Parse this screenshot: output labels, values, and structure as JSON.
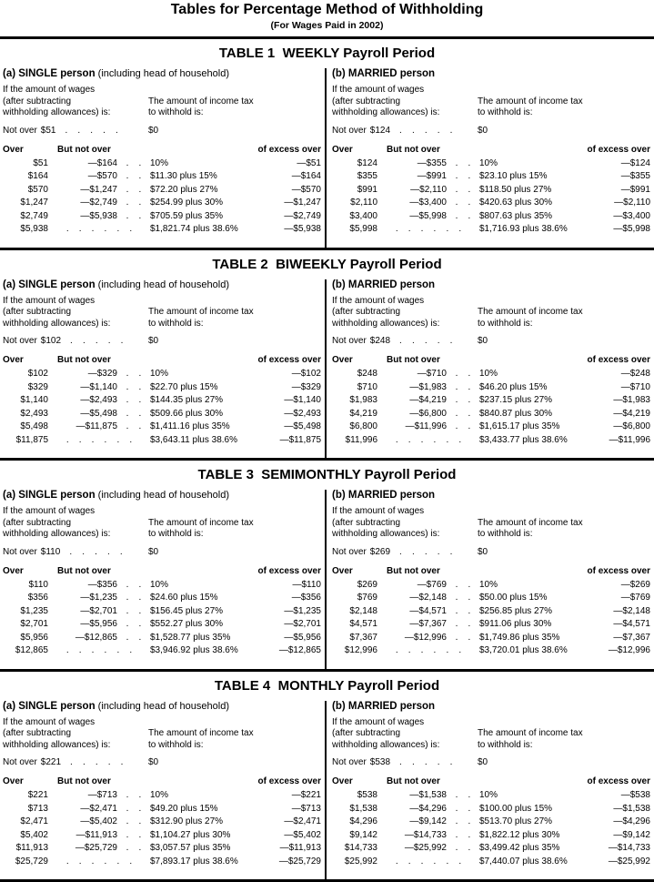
{
  "page": {
    "title": "Tables for Percentage Method of Withholding",
    "subtitle": "(For Wages Paid in 2002)"
  },
  "labels": {
    "wages_lines": [
      "If the amount of wages",
      "(after subtracting",
      "withholding allowances) is:"
    ],
    "tax_lines": [
      "The amount of income tax",
      "to withhold is:"
    ],
    "not_over_prefix": "Not over",
    "zero_amount": "$0",
    "col_over": "Over",
    "col_but_not_over": "But not over",
    "col_of_excess_over": "of excess over",
    "leader_not_over": ".    .    .    .    .",
    "leader_short": ".    .",
    "leader_long": ".    .    .    .    .    ."
  },
  "tables": [
    {
      "title": "TABLE 1  WEEKLY Payroll Period",
      "panels": [
        {
          "id": "single",
          "heading_bold": "(a) SINGLE person",
          "heading_rest": " (including head of household)",
          "not_over": "$51",
          "rows": [
            {
              "over": "$51",
              "but_not_over": "—$164",
              "tax": "10%",
              "of_excess_over": "—$51"
            },
            {
              "over": "$164",
              "but_not_over": "—$570",
              "tax": "$11.30 plus 15%",
              "of_excess_over": "—$164"
            },
            {
              "over": "$570",
              "but_not_over": "—$1,247",
              "tax": "$72.20 plus 27%",
              "of_excess_over": "—$570"
            },
            {
              "over": "$1,247",
              "but_not_over": "—$2,749",
              "tax": "$254.99 plus 30%",
              "of_excess_over": "—$1,247"
            },
            {
              "over": "$2,749",
              "but_not_over": "—$5,938",
              "tax": "$705.59 plus 35%",
              "of_excess_over": "—$2,749"
            },
            {
              "over": "$5,938",
              "but_not_over": "",
              "tax": "$1,821.74 plus 38.6%",
              "of_excess_over": "—$5,938"
            }
          ]
        },
        {
          "id": "married",
          "heading_bold": "(b) MARRIED person",
          "heading_rest": "",
          "not_over": "$124",
          "rows": [
            {
              "over": "$124",
              "but_not_over": "—$355",
              "tax": "10%",
              "of_excess_over": "—$124"
            },
            {
              "over": "$355",
              "but_not_over": "—$991",
              "tax": "$23.10 plus 15%",
              "of_excess_over": "—$355"
            },
            {
              "over": "$991",
              "but_not_over": "—$2,110",
              "tax": "$118.50 plus 27%",
              "of_excess_over": "—$991"
            },
            {
              "over": "$2,110",
              "but_not_over": "—$3,400",
              "tax": "$420.63 plus 30%",
              "of_excess_over": "—$2,110"
            },
            {
              "over": "$3,400",
              "but_not_over": "—$5,998",
              "tax": "$807.63 plus 35%",
              "of_excess_over": "—$3,400"
            },
            {
              "over": "$5,998",
              "but_not_over": "",
              "tax": "$1,716.93 plus 38.6%",
              "of_excess_over": "—$5,998"
            }
          ]
        }
      ]
    },
    {
      "title": "TABLE 2  BIWEEKLY Payroll Period",
      "panels": [
        {
          "id": "single",
          "heading_bold": "(a) SINGLE person",
          "heading_rest": " (including head of household)",
          "not_over": "$102",
          "rows": [
            {
              "over": "$102",
              "but_not_over": "—$329",
              "tax": "10%",
              "of_excess_over": "—$102"
            },
            {
              "over": "$329",
              "but_not_over": "—$1,140",
              "tax": "$22.70 plus 15%",
              "of_excess_over": "—$329"
            },
            {
              "over": "$1,140",
              "but_not_over": "—$2,493",
              "tax": "$144.35 plus 27%",
              "of_excess_over": "—$1,140"
            },
            {
              "over": "$2,493",
              "but_not_over": "—$5,498",
              "tax": "$509.66 plus 30%",
              "of_excess_over": "—$2,493"
            },
            {
              "over": "$5,498",
              "but_not_over": "—$11,875",
              "tax": "$1,411.16 plus 35%",
              "of_excess_over": "—$5,498"
            },
            {
              "over": "$11,875",
              "but_not_over": "",
              "tax": "$3,643.11 plus 38.6%",
              "of_excess_over": "—$11,875"
            }
          ]
        },
        {
          "id": "married",
          "heading_bold": "(b) MARRIED person",
          "heading_rest": "",
          "not_over": "$248",
          "rows": [
            {
              "over": "$248",
              "but_not_over": "—$710",
              "tax": "10%",
              "of_excess_over": "—$248"
            },
            {
              "over": "$710",
              "but_not_over": "—$1,983",
              "tax": "$46.20 plus 15%",
              "of_excess_over": "—$710"
            },
            {
              "over": "$1,983",
              "but_not_over": "—$4,219",
              "tax": "$237.15 plus 27%",
              "of_excess_over": "—$1,983"
            },
            {
              "over": "$4,219",
              "but_not_over": "—$6,800",
              "tax": "$840.87 plus 30%",
              "of_excess_over": "—$4,219"
            },
            {
              "over": "$6,800",
              "but_not_over": "—$11,996",
              "tax": "$1,615.17 plus 35%",
              "of_excess_over": "—$6,800"
            },
            {
              "over": "$11,996",
              "but_not_over": "",
              "tax": "$3,433.77 plus 38.6%",
              "of_excess_over": "—$11,996"
            }
          ]
        }
      ]
    },
    {
      "title": "TABLE 3  SEMIMONTHLY Payroll Period",
      "panels": [
        {
          "id": "single",
          "heading_bold": "(a) SINGLE person",
          "heading_rest": " (including head of household)",
          "not_over": "$110",
          "rows": [
            {
              "over": "$110",
              "but_not_over": "—$356",
              "tax": "10%",
              "of_excess_over": "—$110"
            },
            {
              "over": "$356",
              "but_not_over": "—$1,235",
              "tax": "$24.60 plus 15%",
              "of_excess_over": "—$356"
            },
            {
              "over": "$1,235",
              "but_not_over": "—$2,701",
              "tax": "$156.45 plus 27%",
              "of_excess_over": "—$1,235"
            },
            {
              "over": "$2,701",
              "but_not_over": "—$5,956",
              "tax": "$552.27 plus 30%",
              "of_excess_over": "—$2,701"
            },
            {
              "over": "$5,956",
              "but_not_over": "—$12,865",
              "tax": "$1,528.77 plus 35%",
              "of_excess_over": "—$5,956"
            },
            {
              "over": "$12,865",
              "but_not_over": "",
              "tax": "$3,946.92 plus 38.6%",
              "of_excess_over": "—$12,865"
            }
          ]
        },
        {
          "id": "married",
          "heading_bold": "(b) MARRIED person",
          "heading_rest": "",
          "not_over": "$269",
          "rows": [
            {
              "over": "$269",
              "but_not_over": "—$769",
              "tax": "10%",
              "of_excess_over": "—$269"
            },
            {
              "over": "$769",
              "but_not_over": "—$2,148",
              "tax": "$50.00 plus 15%",
              "of_excess_over": "—$769"
            },
            {
              "over": "$2,148",
              "but_not_over": "—$4,571",
              "tax": "$256.85 plus 27%",
              "of_excess_over": "—$2,148"
            },
            {
              "over": "$4,571",
              "but_not_over": "—$7,367",
              "tax": "$911.06 plus 30%",
              "of_excess_over": "—$4,571"
            },
            {
              "over": "$7,367",
              "but_not_over": "—$12,996",
              "tax": "$1,749.86 plus 35%",
              "of_excess_over": "—$7,367"
            },
            {
              "over": "$12,996",
              "but_not_over": "",
              "tax": "$3,720.01 plus 38.6%",
              "of_excess_over": "—$12,996"
            }
          ]
        }
      ]
    },
    {
      "title": "TABLE 4  MONTHLY Payroll Period",
      "panels": [
        {
          "id": "single",
          "heading_bold": "(a) SINGLE person",
          "heading_rest": " (including head of household)",
          "not_over": "$221",
          "rows": [
            {
              "over": "$221",
              "but_not_over": "—$713",
              "tax": "10%",
              "of_excess_over": "—$221"
            },
            {
              "over": "$713",
              "but_not_over": "—$2,471",
              "tax": "$49.20 plus 15%",
              "of_excess_over": "—$713"
            },
            {
              "over": "$2,471",
              "but_not_over": "—$5,402",
              "tax": "$312.90 plus 27%",
              "of_excess_over": "—$2,471"
            },
            {
              "over": "$5,402",
              "but_not_over": "—$11,913",
              "tax": "$1,104.27 plus 30%",
              "of_excess_over": "—$5,402"
            },
            {
              "over": "$11,913",
              "but_not_over": "—$25,729",
              "tax": "$3,057.57 plus 35%",
              "of_excess_over": "—$11,913"
            },
            {
              "over": "$25,729",
              "but_not_over": "",
              "tax": "$7,893.17 plus 38.6%",
              "of_excess_over": "—$25,729"
            }
          ]
        },
        {
          "id": "married",
          "heading_bold": "(b) MARRIED person",
          "heading_rest": "",
          "not_over": "$538",
          "rows": [
            {
              "over": "$538",
              "but_not_over": "—$1,538",
              "tax": "10%",
              "of_excess_over": "—$538"
            },
            {
              "over": "$1,538",
              "but_not_over": "—$4,296",
              "tax": "$100.00 plus 15%",
              "of_excess_over": "—$1,538"
            },
            {
              "over": "$4,296",
              "but_not_over": "—$9,142",
              "tax": "$513.70 plus 27%",
              "of_excess_over": "—$4,296"
            },
            {
              "over": "$9,142",
              "but_not_over": "—$14,733",
              "tax": "$1,822.12 plus 30%",
              "of_excess_over": "—$9,142"
            },
            {
              "over": "$14,733",
              "but_not_over": "—$25,992",
              "tax": "$3,499.42 plus 35%",
              "of_excess_over": "—$14,733"
            },
            {
              "over": "$25,992",
              "but_not_over": "",
              "tax": "$7,440.07 plus 38.6%",
              "of_excess_over": "—$25,992"
            }
          ]
        }
      ]
    }
  ]
}
